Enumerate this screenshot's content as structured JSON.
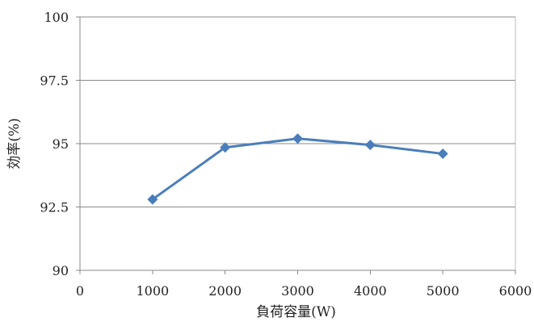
{
  "chart_data": {
    "type": "line",
    "title": "",
    "xlabel": "負荷容量(W)",
    "ylabel": "効率(%)",
    "xlim": [
      0,
      6000
    ],
    "ylim": [
      90,
      100
    ],
    "x_ticks": [
      "0",
      "1000",
      "2000",
      "3000",
      "4000",
      "5000",
      "6000"
    ],
    "y_ticks": [
      "90",
      "92.5",
      "95",
      "97.5",
      "100"
    ],
    "x_tick_values": [
      0,
      1000,
      2000,
      3000,
      4000,
      5000,
      6000
    ],
    "y_tick_values": [
      90,
      92.5,
      95,
      97.5,
      100
    ],
    "grid": "horizontal",
    "legend": "none",
    "series": [
      {
        "x": [
          1000,
          2000,
          3000,
          4000,
          5000
        ],
        "y": [
          92.8,
          94.85,
          95.2,
          94.95,
          94.6
        ],
        "color": "#4a7ebb",
        "marker": "diamond"
      }
    ],
    "colors": {
      "grid": "#888888",
      "axis": "#888888",
      "series": "#4a7ebb"
    }
  }
}
